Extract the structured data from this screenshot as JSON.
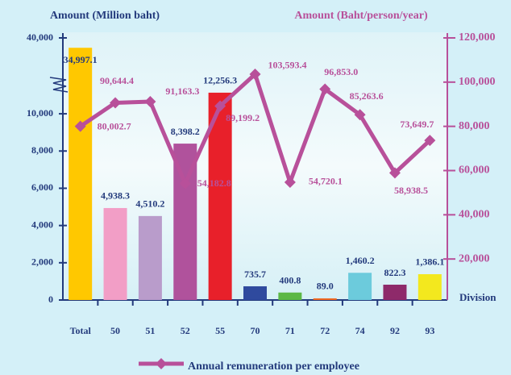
{
  "chart_data": {
    "type": "bar",
    "y_label": "Amount (Million baht)",
    "y2_label": "Amount (Baht/person/year)",
    "x_label": "Division",
    "categories": [
      "Total",
      "50",
      "51",
      "52",
      "55",
      "70",
      "71",
      "72",
      "74",
      "92",
      "93"
    ],
    "values": [
      34997.1,
      4938.3,
      4510.2,
      8398.2,
      12256.3,
      735.7,
      400.8,
      89.0,
      1460.2,
      822.3,
      1386.1
    ],
    "value_labels": [
      "34,997.1",
      "4,938.3",
      "4,510.2",
      "8,398.2",
      "12,256.3",
      "735.7",
      "400.8",
      "89.0",
      "1,460.2",
      "822.3",
      "1,386.1"
    ],
    "colors": [
      "#ffc800",
      "#f29ec6",
      "#b99ccb",
      "#b0529c",
      "#e8202a",
      "#2f4a9e",
      "#5cb845",
      "#f06a22",
      "#6ccbdc",
      "#8e2a6a",
      "#f3e81e"
    ],
    "ylim": [
      0,
      40000
    ],
    "ybreak": 11000,
    "yticks": [
      0,
      {
        "value": 2000,
        "label": "2,000"
      },
      {
        "value": 4000,
        "label": "4,000"
      },
      {
        "value": 6000,
        "label": "6,000"
      },
      {
        "value": 8000,
        "label": "8,000"
      },
      {
        "value": 10000,
        "label": "10,000"
      },
      {
        "value": 40000,
        "label": "40,000"
      }
    ],
    "y2lim": [
      0,
      120000
    ],
    "y2ticks": [
      {
        "value": 20000,
        "label": "20,000"
      },
      {
        "value": 40000,
        "label": "40,000"
      },
      {
        "value": 60000,
        "label": "60,000"
      },
      {
        "value": 80000,
        "label": "80,000"
      },
      {
        "value": 100000,
        "label": "100,000"
      },
      {
        "value": 120000,
        "label": "120,000"
      }
    ],
    "series": [
      {
        "name": "Annual remuneration per employee",
        "color": "#b8509a",
        "type": "line",
        "axis": "y2",
        "values": [
          80002.7,
          90644.4,
          91163.3,
          54182.8,
          89199.2,
          103593.4,
          54720.1,
          96853.0,
          85263.6,
          58938.5,
          73649.7
        ],
        "value_labels": [
          "80,002.7",
          "90,644.4",
          "91,163.3",
          "54,182.8",
          "89,199.2",
          "103,593.4",
          "54,720.1",
          "96,853.0",
          "85,263.6",
          "58,938.5",
          "73,649.7"
        ]
      }
    ]
  }
}
